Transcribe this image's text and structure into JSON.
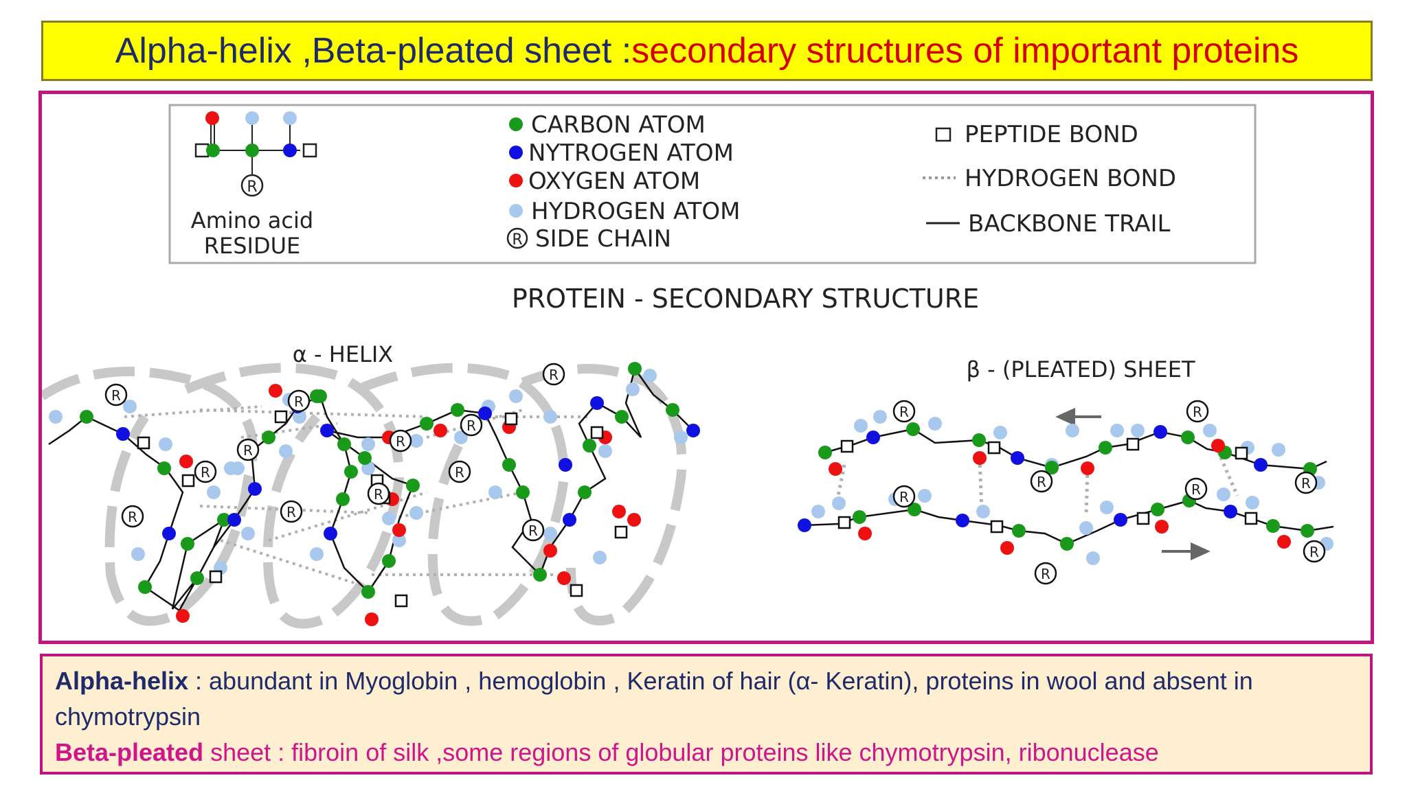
{
  "title": {
    "part1": "Alpha-helix ,Beta-pleated sheet :",
    "part2": "secondary structures of important proteins",
    "colors": {
      "part1": "#1f2a6b",
      "part2": "#d40000",
      "background": "#ffff00"
    }
  },
  "legend": {
    "residue_label_line1": "Amino acid",
    "residue_label_line2": "RESIDUE",
    "side_chain_symbol": "R",
    "atoms": [
      {
        "label": "CARBON ATOM",
        "color": "#1a9a1a"
      },
      {
        "label": "NYTROGEN ATOM",
        "color": "#1010e0"
      },
      {
        "label": "OXYGEN ATOM",
        "color": "#ee1111"
      },
      {
        "label": "HYDROGEN ATOM",
        "color": "#a8c8ee"
      },
      {
        "label": "SIDE CHAIN",
        "symbol": "R"
      }
    ],
    "bonds": [
      {
        "label": "PEPTIDE BOND",
        "symbol": "square"
      },
      {
        "label": "HYDROGEN BOND",
        "symbol": "dotted-line"
      },
      {
        "label": "BACKBONE TRAIL",
        "symbol": "solid-line"
      }
    ]
  },
  "diagram": {
    "heading": "PROTEIN - SECONDARY STRUCTURE",
    "alpha_label": "α - HELIX",
    "beta_label": "β - (PLEATED) SHEET"
  },
  "info": {
    "alpha_term": "Alpha-helix",
    "alpha_text": " : abundant in Myoglobin , hemoglobin , Keratin of hair (α- Keratin), proteins in wool and absent in chymotrypsin",
    "beta_term": "Beta-pleated",
    "beta_text": " sheet : fibroin of silk ,some regions of  globular proteins like chymotrypsin, ribonuclease"
  }
}
